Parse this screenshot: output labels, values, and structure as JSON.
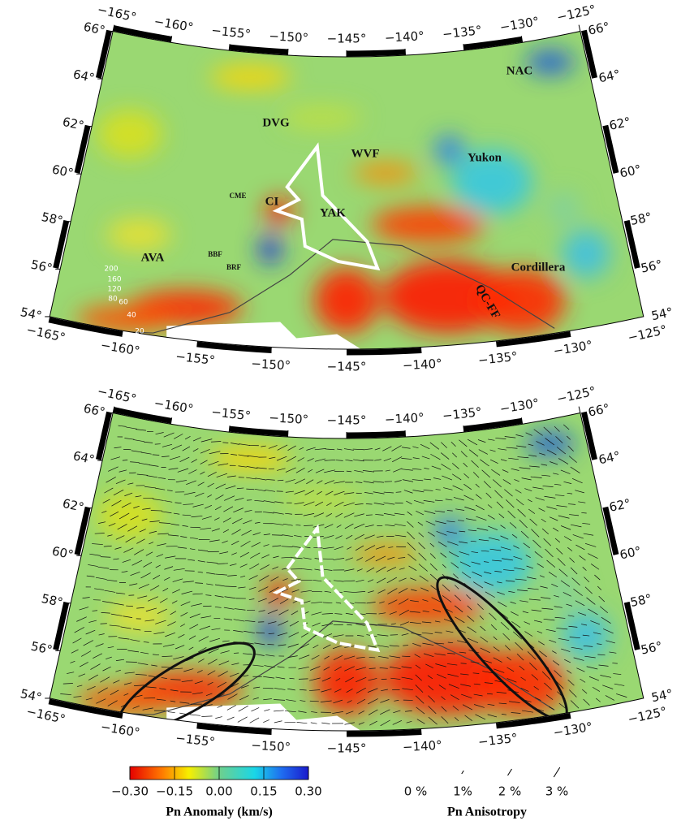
{
  "maps": [
    {
      "lon_ticks": [
        {
          "value": -165,
          "label": "−165°"
        },
        {
          "value": -160,
          "label": "−160°"
        },
        {
          "value": -155,
          "label": "−155°"
        },
        {
          "value": -150,
          "label": "−150°"
        },
        {
          "value": -145,
          "label": "−145°"
        },
        {
          "value": -140,
          "label": "−140°"
        },
        {
          "value": -135,
          "label": "−135°"
        },
        {
          "value": -130,
          "label": "−130°"
        },
        {
          "value": -125,
          "label": "−125°"
        }
      ],
      "lat_ticks": [
        {
          "value": 54,
          "label": "54°"
        },
        {
          "value": 56,
          "label": "56°"
        },
        {
          "value": 58,
          "label": "58°"
        },
        {
          "value": 60,
          "label": "60°"
        },
        {
          "value": 62,
          "label": "62°"
        },
        {
          "value": 64,
          "label": "64°"
        },
        {
          "value": 66,
          "label": "66°"
        }
      ],
      "annotations": [
        "NAC",
        "DVG",
        "WVF",
        "Yukon",
        "CI",
        "CME",
        "YAK",
        "AVA",
        "BBF",
        "BRF",
        "Cordillera",
        "QC-FF",
        "200",
        "160",
        "120",
        "80",
        "60",
        "40",
        "20"
      ]
    },
    {
      "lon_ticks": [
        {
          "value": -165,
          "label": "−165°"
        },
        {
          "value": -160,
          "label": "−160°"
        },
        {
          "value": -155,
          "label": "−155°"
        },
        {
          "value": -150,
          "label": "−150°"
        },
        {
          "value": -145,
          "label": "−145°"
        },
        {
          "value": -140,
          "label": "−140°"
        },
        {
          "value": -135,
          "label": "−135°"
        },
        {
          "value": -130,
          "label": "−130°"
        },
        {
          "value": -125,
          "label": "−125°"
        }
      ],
      "lat_ticks": [
        {
          "value": 54,
          "label": "54°"
        },
        {
          "value": 56,
          "label": "56°"
        },
        {
          "value": 58,
          "label": "58°"
        },
        {
          "value": 60,
          "label": "60°"
        },
        {
          "value": 62,
          "label": "62°"
        },
        {
          "value": 64,
          "label": "64°"
        },
        {
          "value": 66,
          "label": "66°"
        }
      ]
    }
  ],
  "colorbar": {
    "title": "Pn Anomaly (km/s)",
    "range": [
      -0.3,
      0.3
    ],
    "ticks": [
      {
        "value": -0.3,
        "label": "−0.30"
      },
      {
        "value": -0.15,
        "label": "−0.15"
      },
      {
        "value": 0,
        "label": "0.00"
      },
      {
        "value": 0.15,
        "label": "0.15"
      },
      {
        "value": 0.3,
        "label": "0.30"
      }
    ]
  },
  "anisotropy_scale": {
    "title": "Pn Anisotropy",
    "ticks": [
      {
        "value": 0,
        "label": "0 %"
      },
      {
        "value": 1,
        "label": "1%"
      },
      {
        "value": 2,
        "label": "2 %"
      },
      {
        "value": 3,
        "label": "3 %"
      }
    ]
  }
}
